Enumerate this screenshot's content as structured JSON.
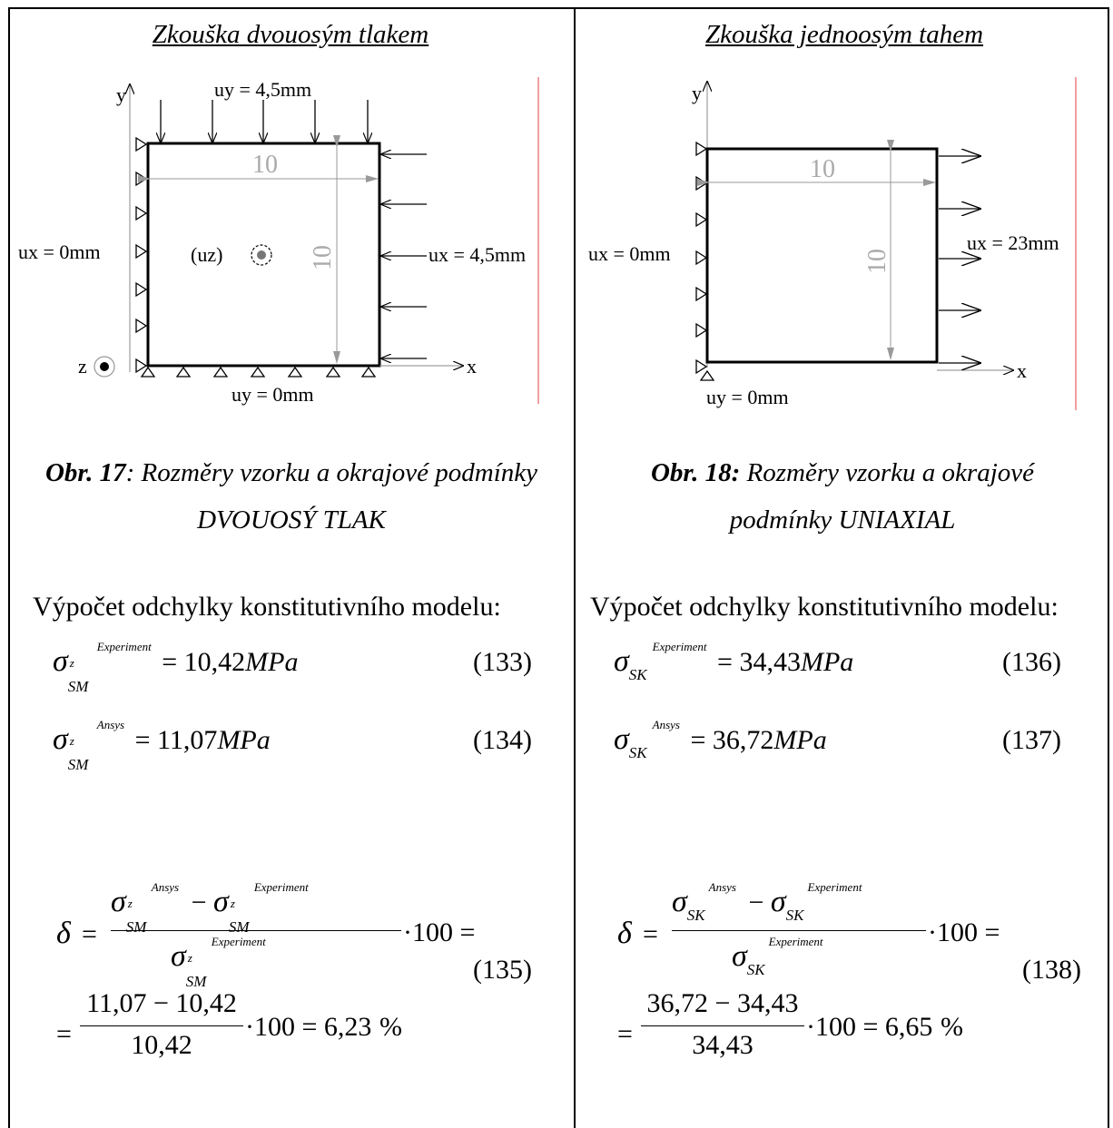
{
  "left": {
    "title": "Zkouška dvouosým tlakem",
    "diagram": {
      "uy_top": "uy = 4,5mm",
      "uy_bottom": "uy = 0mm",
      "ux_left": "ux = 0mm",
      "ux_right": "ux = 4,5mm",
      "uz": "(uz)",
      "axis_y": "y",
      "axis_x": "x",
      "axis_z": "z",
      "dim_h": "10",
      "dim_v": "10"
    },
    "caption_bold": "Obr. 17",
    "caption_rest": ": Rozměry vzorku a okrajové podmínky",
    "caption_line2": "DVOUOSÝ TLAK",
    "calc_heading": "Výpočet odchylky konstitutivního modelu:",
    "eq133": {
      "value": "= 10,42",
      "unit": "MPa",
      "sup": "Experiment",
      "sub": "SM",
      "zsup": "z",
      "num": "(133)"
    },
    "eq134": {
      "value": "= 11,07",
      "unit": "MPa",
      "sup": "Ansys",
      "sub": "SM",
      "zsup": "z",
      "num": "(134)"
    },
    "eq135": {
      "num": "(135)",
      "line2": "= ",
      "frac_num": "11,07 − 10,42",
      "frac_den": "10,42",
      "result": "·100 = 6,23",
      "pct": "%",
      "mult": "·100 ="
    }
  },
  "right": {
    "title": "Zkouška jednoosým tahem",
    "diagram": {
      "uy_bottom": "uy = 0mm",
      "ux_left": "ux = 0mm",
      "ux_right": "ux = 23mm",
      "axis_y": "y",
      "axis_x": "x",
      "dim_h": "10",
      "dim_v": "10"
    },
    "caption_bold": "Obr. 18:",
    "caption_rest": " Rozměry vzorku a okrajové",
    "caption_line2": "podmínky UNIAXIAL",
    "calc_heading": "Výpočet odchylky konstitutivního modelu:",
    "eq136": {
      "value": "= 34,43",
      "unit": "MPa",
      "sup": "Experiment",
      "sub": "SK",
      "num": "(136)"
    },
    "eq137": {
      "value": "= 36,72",
      "unit": "MPa",
      "sup": "Ansys",
      "sub": "SK",
      "num": "(137)"
    },
    "eq138": {
      "num": "(138)",
      "line2": "= ",
      "frac_num": "36,72 − 34,43",
      "frac_den": "34,43",
      "result": "·100 = 6,65",
      "pct": "%",
      "mult": "·100 ="
    }
  },
  "symbols": {
    "sigma": "σ",
    "delta": "δ",
    "minus": "−",
    "eqsign": "="
  }
}
